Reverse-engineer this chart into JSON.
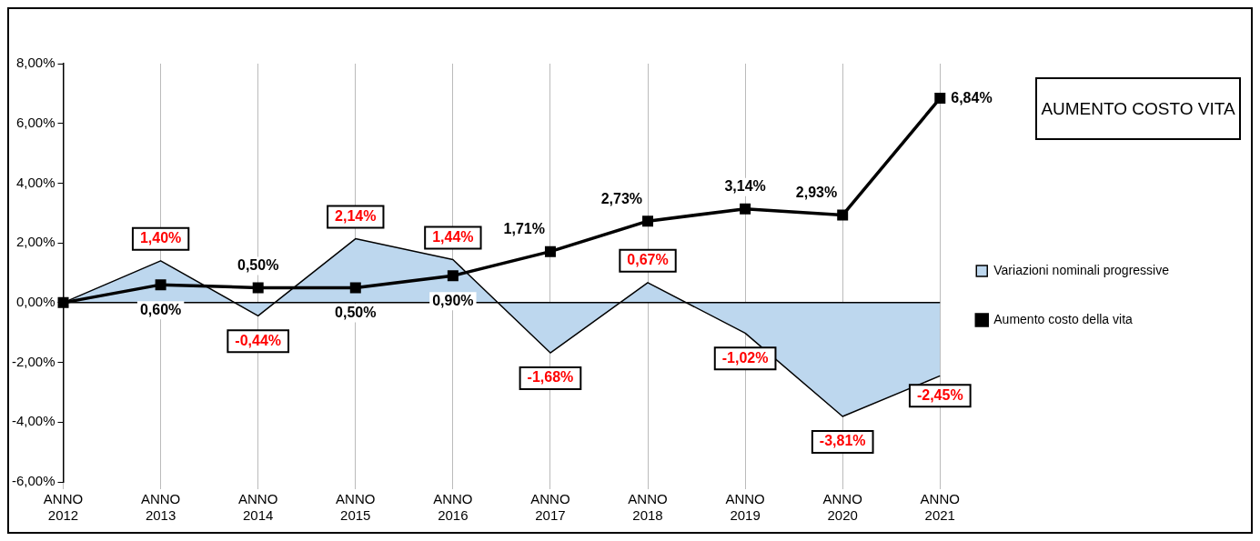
{
  "chart_data": {
    "type": "line",
    "title": "AUMENTO COSTO VITA",
    "categories": [
      "ANNO 2012",
      "ANNO 2013",
      "ANNO 2014",
      "ANNO 2015",
      "ANNO 2016",
      "ANNO 2017",
      "ANNO 2018",
      "ANNO 2019",
      "ANNO 2020",
      "ANNO 2021"
    ],
    "series": [
      {
        "name": "Variazioni nominali progressive",
        "type": "area",
        "color": "#bdd7ee",
        "values": [
          0,
          1.4,
          -0.44,
          2.14,
          1.44,
          -1.68,
          0.67,
          -1.02,
          -3.81,
          -2.45
        ],
        "value_labels": [
          null,
          "1,40%",
          "-0,44%",
          "2,14%",
          "1,44%",
          "-1,68%",
          "0,67%",
          "-1,02%",
          "-3,81%",
          "-2,45%"
        ]
      },
      {
        "name": "Aumento costo della vita",
        "type": "line",
        "color": "#000000",
        "marker": "square",
        "values": [
          0,
          0.6,
          0.5,
          0.5,
          0.9,
          1.71,
          2.73,
          3.14,
          2.93,
          6.84
        ],
        "value_labels": [
          null,
          "0,60%",
          "0,50%",
          "0,50%",
          "0,90%",
          "1,71%",
          "2,73%",
          "3,14%",
          "2,93%",
          "6,84%"
        ]
      }
    ],
    "ylim": [
      -6,
      8
    ],
    "yticks": [
      {
        "value": -6,
        "label": "-6,00%"
      },
      {
        "value": -4,
        "label": "-4,00%"
      },
      {
        "value": -2,
        "label": "-2,00%"
      },
      {
        "value": 0,
        "label": "0,00%"
      },
      {
        "value": 2,
        "label": "2,00%"
      },
      {
        "value": 4,
        "label": "4,00%"
      },
      {
        "value": 6,
        "label": "6,00%"
      },
      {
        "value": 8,
        "label": "8,00%"
      }
    ],
    "grid": "x",
    "legend": "right"
  }
}
